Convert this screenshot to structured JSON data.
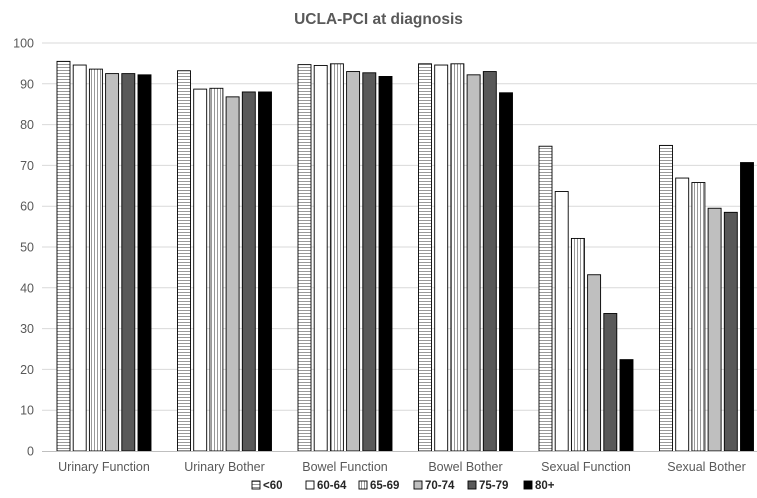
{
  "chart_data": {
    "type": "bar",
    "title": "UCLA-PCI  at diagnosis",
    "xlabel": "",
    "ylabel": "",
    "ylim": [
      0,
      100
    ],
    "yticks": [
      0,
      10,
      20,
      30,
      40,
      50,
      60,
      70,
      80,
      90,
      100
    ],
    "grid": true,
    "legend": "bottom",
    "categories": [
      "Urinary Function",
      "Urinary Bother",
      "Bowel Function",
      "Bowel Bother",
      "Sexual Function",
      "Sexual Bother"
    ],
    "series": [
      {
        "name": "<60",
        "pattern": "horizontal-lines",
        "color": "#ffffff",
        "values": [
          95.5,
          93.2,
          94.7,
          94.9,
          74.7,
          74.9
        ]
      },
      {
        "name": "60-64",
        "pattern": "solid",
        "color": "#ffffff",
        "values": [
          94.6,
          88.7,
          94.5,
          94.6,
          63.6,
          66.9
        ]
      },
      {
        "name": "65-69",
        "pattern": "vertical-lines",
        "color": "#ffffff",
        "values": [
          93.6,
          88.9,
          94.9,
          94.9,
          52.1,
          65.8
        ]
      },
      {
        "name": "70-74",
        "pattern": "solid",
        "color": "#bfbfbf",
        "values": [
          92.5,
          86.8,
          93.0,
          92.2,
          43.2,
          59.5
        ]
      },
      {
        "name": "75-79",
        "pattern": "solid",
        "color": "#595959",
        "values": [
          92.5,
          88.0,
          92.7,
          93.0,
          33.7,
          58.5
        ]
      },
      {
        "name": "80+",
        "pattern": "solid",
        "color": "#000000",
        "values": [
          92.2,
          88.0,
          91.8,
          87.8,
          22.4,
          70.7
        ]
      }
    ]
  }
}
